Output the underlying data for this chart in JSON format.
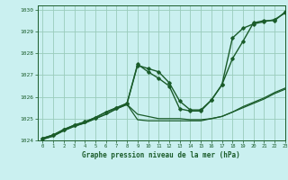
{
  "title": "Graphe pression niveau de la mer (hPa)",
  "xlim": [
    -0.5,
    23
  ],
  "ylim": [
    1024,
    1030.2
  ],
  "yticks": [
    1024,
    1025,
    1026,
    1027,
    1028,
    1029,
    1030
  ],
  "xticks": [
    0,
    1,
    2,
    3,
    4,
    5,
    6,
    7,
    8,
    9,
    10,
    11,
    12,
    13,
    14,
    15,
    16,
    17,
    18,
    19,
    20,
    21,
    22,
    23
  ],
  "bg_color": "#caf0f0",
  "grid_color": "#99ccbb",
  "line_color": "#1a5c2a",
  "series": [
    {
      "x": [
        0,
        1,
        2,
        3,
        4,
        5,
        6,
        7,
        8,
        9,
        10,
        11,
        12,
        13,
        14,
        15,
        16,
        17,
        18,
        19,
        20,
        21,
        22,
        23
      ],
      "y": [
        1024.1,
        1024.25,
        1024.5,
        1024.7,
        1024.85,
        1025.05,
        1025.3,
        1025.5,
        1025.7,
        1027.45,
        1027.3,
        1027.15,
        1026.65,
        1025.8,
        1025.4,
        1025.4,
        1025.85,
        1026.55,
        1027.75,
        1028.55,
        1029.4,
        1029.5,
        1029.5,
        1029.9
      ],
      "marker": true,
      "lw": 1.0
    },
    {
      "x": [
        0,
        1,
        2,
        3,
        4,
        5,
        6,
        7,
        8,
        9,
        10,
        11,
        12,
        13,
        14,
        15,
        16,
        17,
        18,
        19,
        20,
        21,
        22,
        23
      ],
      "y": [
        1024.1,
        1024.25,
        1024.5,
        1024.7,
        1024.85,
        1025.05,
        1025.3,
        1025.5,
        1025.7,
        1027.5,
        1027.15,
        1026.85,
        1026.5,
        1025.45,
        1025.35,
        1025.35,
        1025.85,
        1026.55,
        1028.7,
        1029.15,
        1029.35,
        1029.45,
        1029.55,
        1029.85
      ],
      "marker": true,
      "lw": 1.0
    },
    {
      "x": [
        0,
        1,
        2,
        3,
        4,
        5,
        6,
        7,
        8,
        9,
        10,
        11,
        12,
        13,
        14,
        15,
        16,
        17,
        18,
        19,
        20,
        21,
        22,
        23
      ],
      "y": [
        1024.05,
        1024.2,
        1024.45,
        1024.65,
        1024.8,
        1025.0,
        1025.2,
        1025.45,
        1025.65,
        1024.95,
        1024.9,
        1024.9,
        1024.9,
        1024.9,
        1024.9,
        1024.9,
        1025.0,
        1025.1,
        1025.3,
        1025.5,
        1025.7,
        1025.9,
        1026.15,
        1026.35
      ],
      "marker": false,
      "lw": 0.9
    },
    {
      "x": [
        0,
        1,
        2,
        3,
        4,
        5,
        6,
        7,
        8,
        9,
        10,
        11,
        12,
        13,
        14,
        15,
        16,
        17,
        18,
        19,
        20,
        21,
        22,
        23
      ],
      "y": [
        1024.05,
        1024.2,
        1024.45,
        1024.65,
        1024.8,
        1025.0,
        1025.2,
        1025.45,
        1025.65,
        1025.2,
        1025.1,
        1025.0,
        1025.0,
        1025.0,
        1024.95,
        1024.95,
        1025.0,
        1025.1,
        1025.3,
        1025.55,
        1025.75,
        1025.95,
        1026.2,
        1026.4
      ],
      "marker": false,
      "lw": 0.9
    }
  ]
}
